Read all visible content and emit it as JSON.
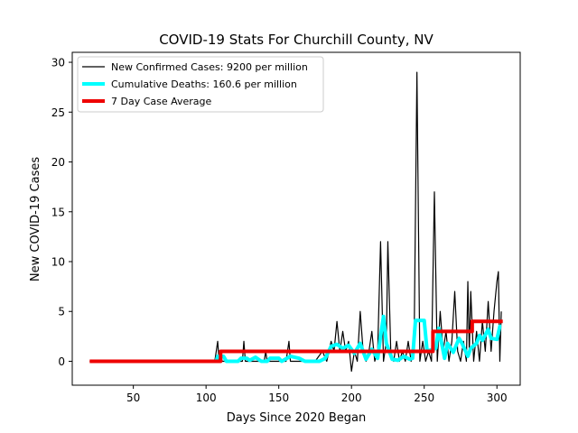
{
  "chart_data": {
    "type": "line",
    "title": "COVID-19 Stats For Churchill County, NV",
    "xlabel": "Days Since 2020 Began",
    "ylabel": "New COVID-19 Cases",
    "xlim": [
      8,
      316
    ],
    "ylim": [
      -2.4,
      31
    ],
    "xticks": [
      50,
      100,
      150,
      200,
      250,
      300
    ],
    "yticks": [
      0,
      5,
      10,
      15,
      20,
      25,
      30
    ],
    "grid": false,
    "legend_position": "top-left",
    "series": [
      {
        "name": "New Confirmed Cases: 9200 per million",
        "color": "#000000",
        "points": [
          [
            20,
            0
          ],
          [
            106,
            0
          ],
          [
            107,
            1
          ],
          [
            108,
            2
          ],
          [
            109,
            0
          ],
          [
            110,
            1
          ],
          [
            111,
            0
          ],
          [
            125,
            0
          ],
          [
            126,
            2
          ],
          [
            127,
            0
          ],
          [
            140,
            0
          ],
          [
            141,
            1
          ],
          [
            142,
            0
          ],
          [
            155,
            0
          ],
          [
            156,
            1
          ],
          [
            157,
            2
          ],
          [
            158,
            0
          ],
          [
            175,
            0
          ],
          [
            180,
            1
          ],
          [
            183,
            0
          ],
          [
            186,
            2
          ],
          [
            188,
            1
          ],
          [
            190,
            4
          ],
          [
            192,
            1
          ],
          [
            194,
            3
          ],
          [
            196,
            1
          ],
          [
            198,
            2
          ],
          [
            200,
            -1
          ],
          [
            202,
            1
          ],
          [
            204,
            0
          ],
          [
            206,
            5
          ],
          [
            208,
            1
          ],
          [
            210,
            0
          ],
          [
            212,
            1
          ],
          [
            214,
            3
          ],
          [
            216,
            0
          ],
          [
            218,
            1
          ],
          [
            220,
            12
          ],
          [
            222,
            0
          ],
          [
            224,
            2
          ],
          [
            225,
            12
          ],
          [
            227,
            1
          ],
          [
            229,
            0
          ],
          [
            231,
            2
          ],
          [
            233,
            0
          ],
          [
            235,
            1
          ],
          [
            237,
            0
          ],
          [
            239,
            2
          ],
          [
            241,
            0
          ],
          [
            243,
            1
          ],
          [
            245,
            29
          ],
          [
            247,
            0
          ],
          [
            249,
            2
          ],
          [
            251,
            0
          ],
          [
            253,
            1
          ],
          [
            255,
            0
          ],
          [
            257,
            17
          ],
          [
            259,
            0
          ],
          [
            261,
            5
          ],
          [
            263,
            1
          ],
          [
            265,
            3
          ],
          [
            267,
            0
          ],
          [
            269,
            2
          ],
          [
            271,
            7
          ],
          [
            273,
            1
          ],
          [
            275,
            0
          ],
          [
            277,
            2
          ],
          [
            279,
            0
          ],
          [
            280,
            8
          ],
          [
            281,
            1
          ],
          [
            282,
            7
          ],
          [
            284,
            0
          ],
          [
            286,
            3
          ],
          [
            288,
            0
          ],
          [
            290,
            4
          ],
          [
            292,
            1
          ],
          [
            294,
            6
          ],
          [
            296,
            1
          ],
          [
            298,
            5
          ],
          [
            300,
            8
          ],
          [
            301,
            9
          ],
          [
            302,
            0
          ],
          [
            303,
            5
          ]
        ]
      },
      {
        "name": "Cumulative Deaths: 160.6 per million",
        "color": "#00ffff",
        "points": [
          [
            107,
            0
          ],
          [
            108,
            0.5
          ],
          [
            112,
            0.5
          ],
          [
            114,
            0
          ],
          [
            122,
            0
          ],
          [
            124,
            0.3
          ],
          [
            128,
            0.3
          ],
          [
            130,
            0.1
          ],
          [
            134,
            0.4
          ],
          [
            138,
            0
          ],
          [
            142,
            0
          ],
          [
            144,
            0.3
          ],
          [
            150,
            0.3
          ],
          [
            152,
            0
          ],
          [
            158,
            0.5
          ],
          [
            164,
            0.3
          ],
          [
            168,
            0
          ],
          [
            178,
            0
          ],
          [
            182,
            0.3
          ],
          [
            186,
            1.5
          ],
          [
            190,
            1.7
          ],
          [
            194,
            1.3
          ],
          [
            198,
            1.6
          ],
          [
            202,
            0.8
          ],
          [
            206,
            1.8
          ],
          [
            210,
            0.2
          ],
          [
            214,
            1.2
          ],
          [
            218,
            0.3
          ],
          [
            220,
            2.5
          ],
          [
            222,
            4.5
          ],
          [
            224,
            1.8
          ],
          [
            228,
            0.2
          ],
          [
            232,
            0.1
          ],
          [
            236,
            0.5
          ],
          [
            240,
            0.2
          ],
          [
            242,
            0.3
          ],
          [
            244,
            4.1
          ],
          [
            250,
            4.1
          ],
          [
            252,
            1
          ],
          [
            256,
            1.2
          ],
          [
            258,
            1.3
          ],
          [
            260,
            3.3
          ],
          [
            264,
            0.3
          ],
          [
            266,
            1.8
          ],
          [
            270,
            0.9
          ],
          [
            274,
            2.3
          ],
          [
            276,
            1.8
          ],
          [
            280,
            0.5
          ],
          [
            282,
            1.3
          ],
          [
            286,
            1.8
          ],
          [
            288,
            2.6
          ],
          [
            290,
            2.1
          ],
          [
            294,
            3.2
          ],
          [
            296,
            2.3
          ],
          [
            300,
            2.2
          ],
          [
            302,
            3.5
          ],
          [
            303,
            3.5
          ]
        ]
      },
      {
        "name": "7 Day Case Average",
        "color": "#ee0000",
        "points": [
          [
            20,
            0
          ],
          [
            110,
            0
          ],
          [
            110,
            1
          ],
          [
            256,
            1
          ],
          [
            256,
            3
          ],
          [
            283,
            3
          ],
          [
            283,
            4
          ],
          [
            304,
            4
          ]
        ]
      }
    ]
  }
}
